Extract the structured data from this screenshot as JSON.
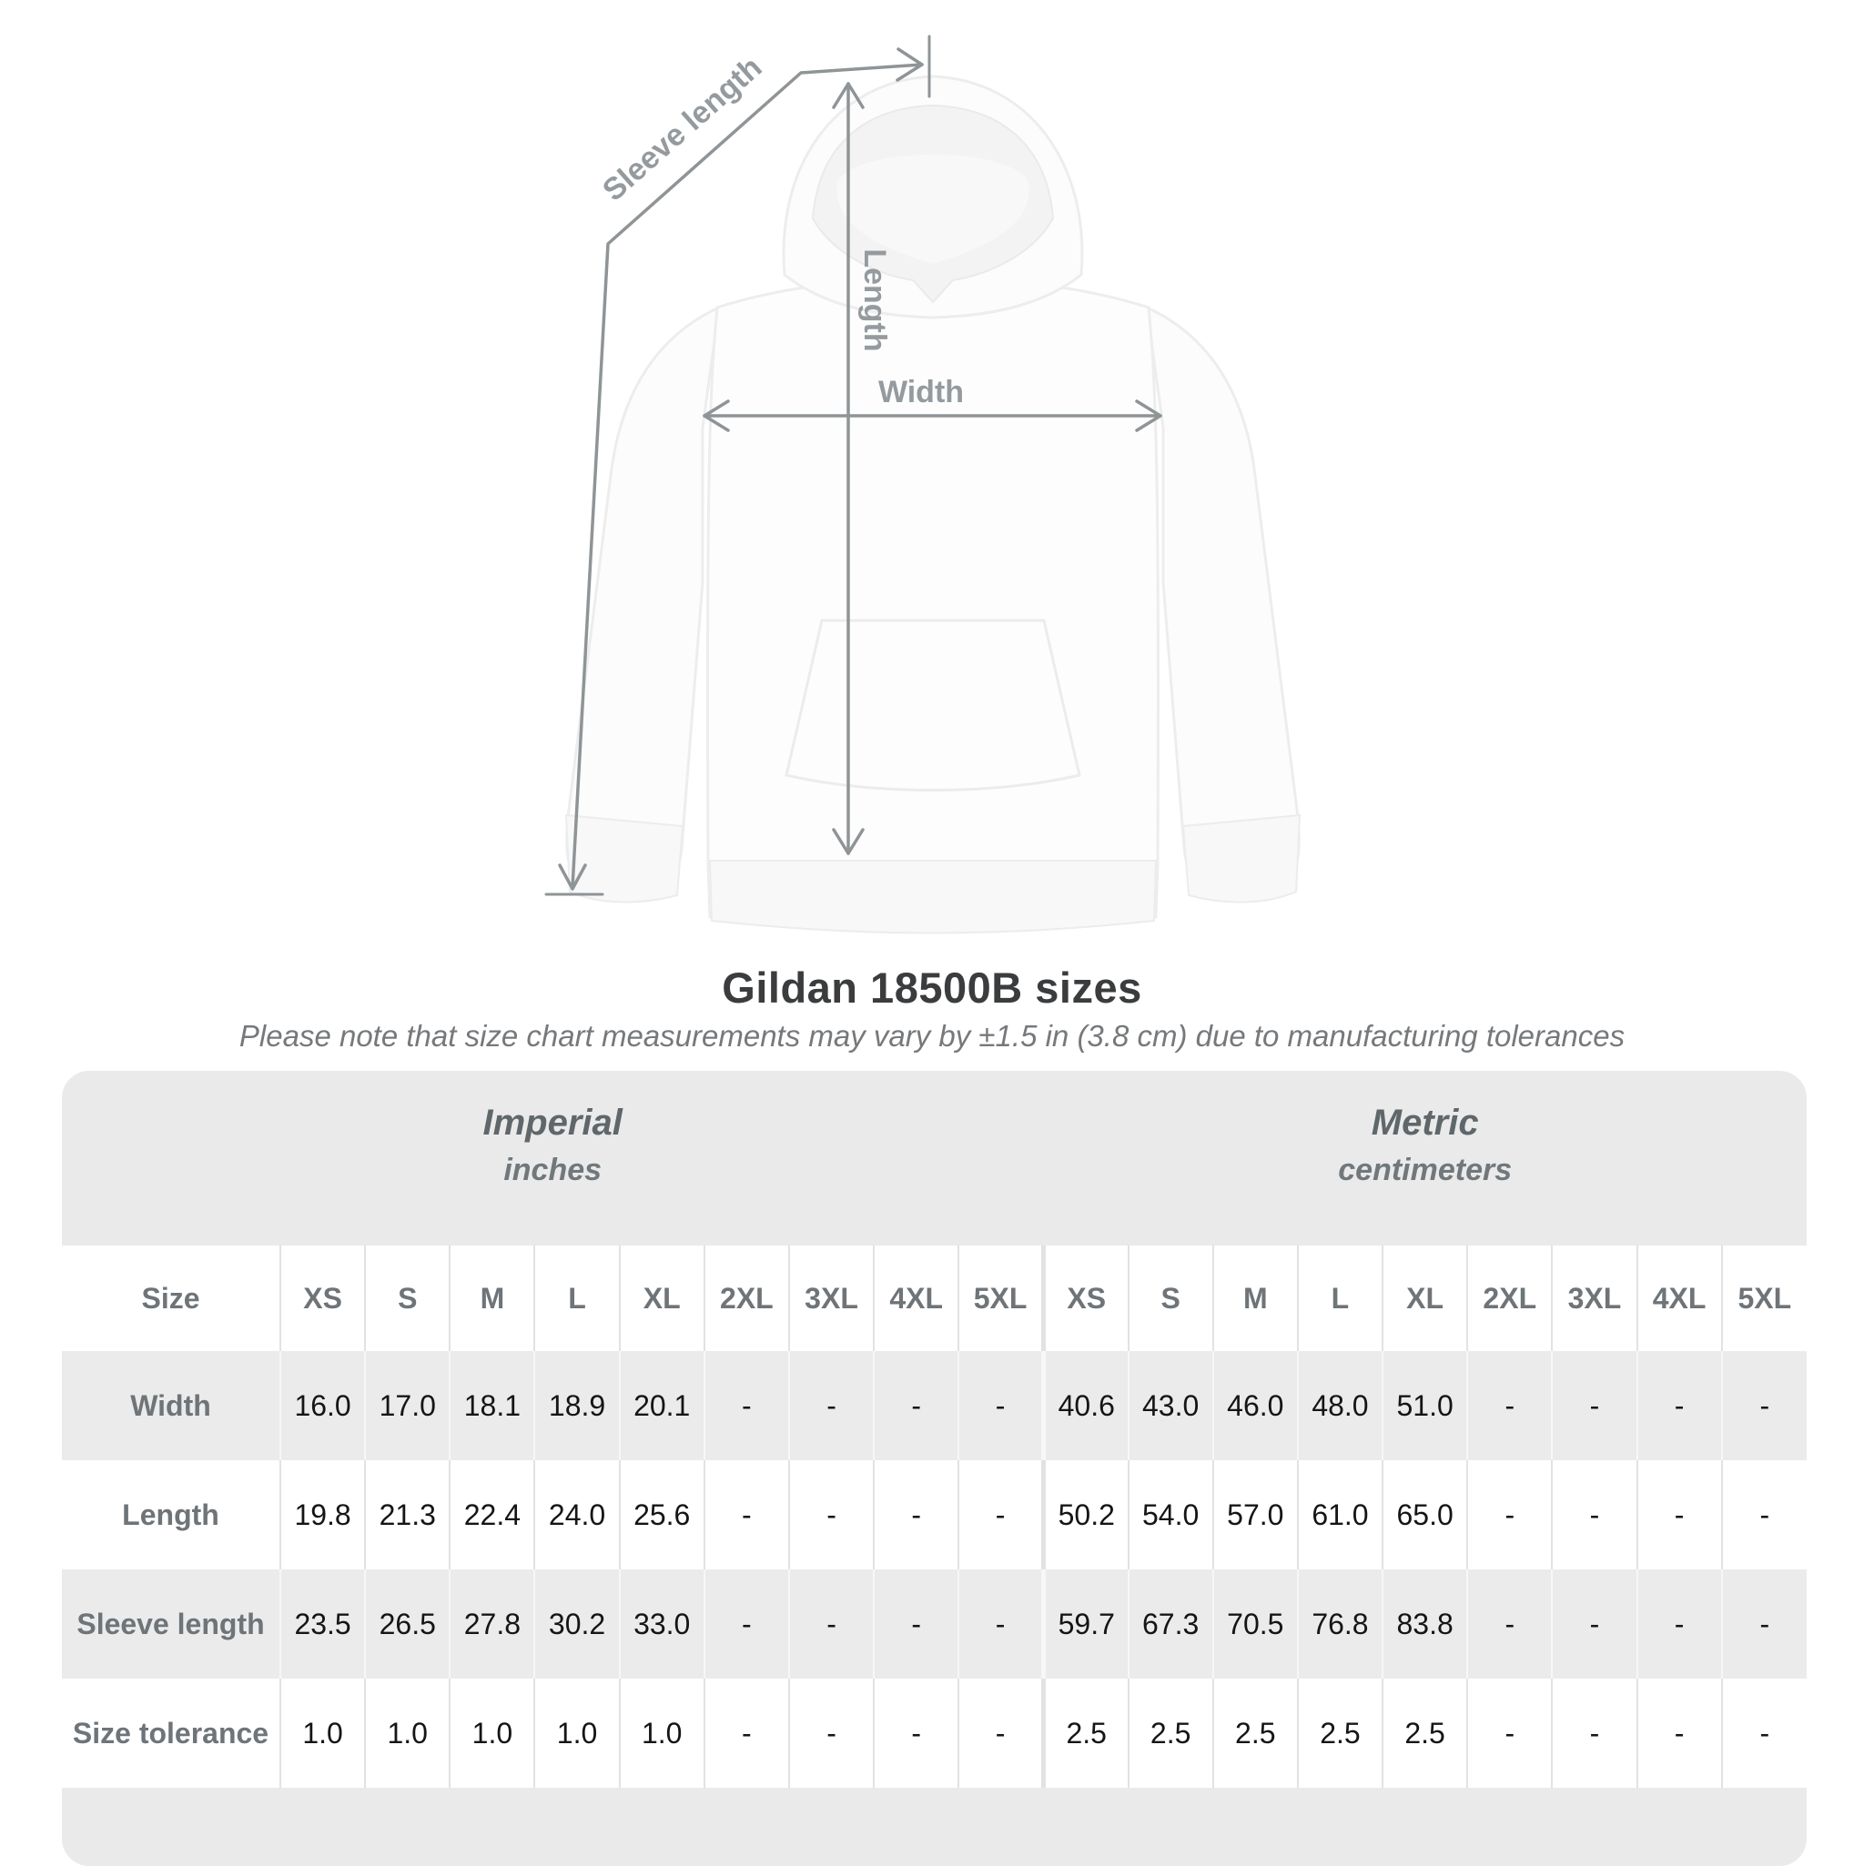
{
  "diagram": {
    "sleeve_label": "Sleeve length",
    "length_label": "Length",
    "width_label": "Width"
  },
  "title": "Gildan 18500B sizes",
  "subtitle": "Please note that size chart measurements may vary by ±1.5 in (3.8 cm) due to manufacturing tolerances",
  "table": {
    "groups": [
      {
        "name": "Imperial",
        "unit": "inches"
      },
      {
        "name": "Metric",
        "unit": "centimeters"
      }
    ],
    "size_label": "Size",
    "sizes": [
      "XS",
      "S",
      "M",
      "L",
      "XL",
      "2XL",
      "3XL",
      "4XL",
      "5XL"
    ],
    "rows": [
      {
        "label": "Width",
        "imperial": [
          "16.0",
          "17.0",
          "18.1",
          "18.9",
          "20.1",
          "-",
          "-",
          "-",
          "-"
        ],
        "metric": [
          "40.6",
          "43.0",
          "46.0",
          "48.0",
          "51.0",
          "-",
          "-",
          "-",
          "-"
        ]
      },
      {
        "label": "Length",
        "imperial": [
          "19.8",
          "21.3",
          "22.4",
          "24.0",
          "25.6",
          "-",
          "-",
          "-",
          "-"
        ],
        "metric": [
          "50.2",
          "54.0",
          "57.0",
          "61.0",
          "65.0",
          "-",
          "-",
          "-",
          "-"
        ]
      },
      {
        "label": "Sleeve length",
        "imperial": [
          "23.5",
          "26.5",
          "27.8",
          "30.2",
          "33.0",
          "-",
          "-",
          "-",
          "-"
        ],
        "metric": [
          "59.7",
          "67.3",
          "70.5",
          "76.8",
          "83.8",
          "-",
          "-",
          "-",
          "-"
        ]
      },
      {
        "label": "Size tolerance",
        "imperial": [
          "1.0",
          "1.0",
          "1.0",
          "1.0",
          "1.0",
          "-",
          "-",
          "-",
          "-"
        ],
        "metric": [
          "2.5",
          "2.5",
          "2.5",
          "2.5",
          "2.5",
          "-",
          "-",
          "-",
          "-"
        ]
      }
    ]
  },
  "colors": {
    "measure_line": "#8f9497",
    "measure_label": "#949a9e",
    "band_gray": "#eaeaea",
    "row_gray": "#ebebeb",
    "title_text": "#3a3c3e",
    "value_text": "#151515",
    "header_text": "#6e7478"
  }
}
